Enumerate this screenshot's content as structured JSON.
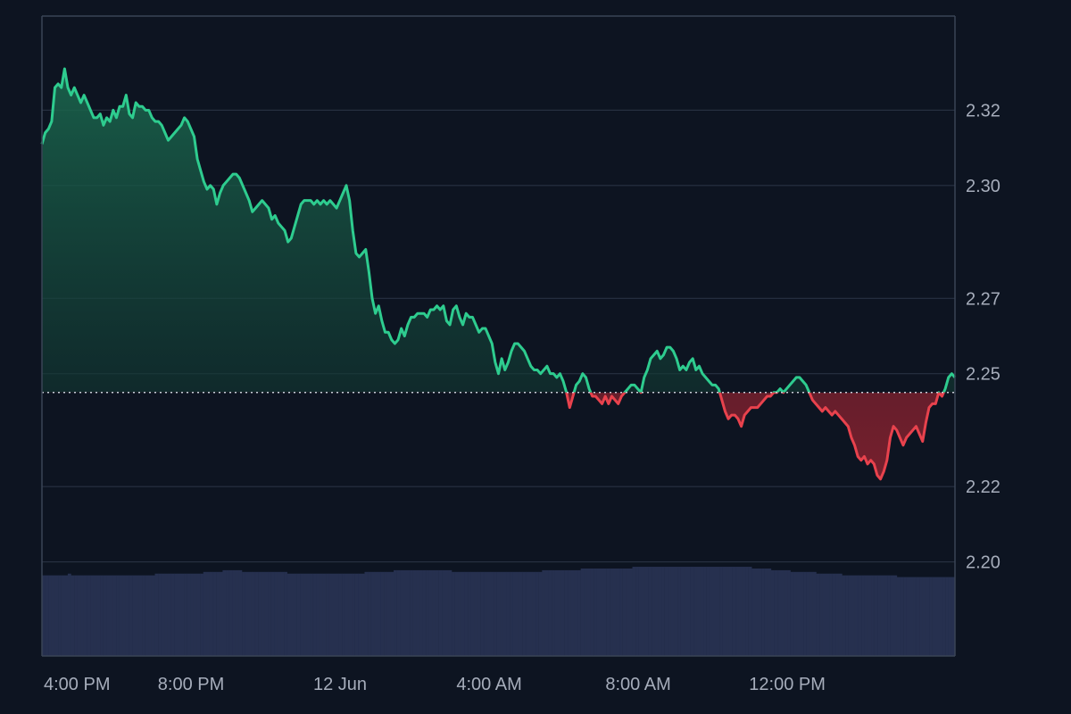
{
  "chart_data": {
    "type": "area",
    "title": "",
    "xlabel": "",
    "ylabel": "",
    "baseline": 2.245,
    "ylim": [
      2.175,
      2.345
    ],
    "y_ticks": [
      "2.32",
      "2.30",
      "2.27",
      "2.25",
      "2.22",
      "2.20"
    ],
    "y_tick_values": [
      2.32,
      2.3,
      2.27,
      2.25,
      2.22,
      2.2
    ],
    "x_ticks": [
      "4:00 PM",
      "8:00 PM",
      "12 Jun",
      "4:00 AM",
      "8:00 AM",
      "12:00 PM"
    ],
    "x_tick_hours": [
      0,
      4,
      8,
      12,
      16,
      20
    ],
    "x_range_hours": [
      0,
      24.5
    ],
    "grid": true,
    "colors": {
      "above": "#2ecc8f",
      "below": "#e8424d",
      "above_fill": "#1d6e52",
      "below_fill": "#7a1f2b",
      "volume": "#26304f",
      "grid": "#283142",
      "baseline_line": "#c9ced8",
      "background": "#0d1421"
    },
    "series": [
      {
        "values": [
          2.311,
          2.314,
          2.315,
          2.317,
          2.326,
          2.327,
          2.326,
          2.331,
          2.326,
          2.324,
          2.326,
          2.324,
          2.322,
          2.324,
          2.322,
          2.32,
          2.318,
          2.318,
          2.319,
          2.316,
          2.318,
          2.317,
          2.32,
          2.318,
          2.321,
          2.321,
          2.324,
          2.319,
          2.318,
          2.322,
          2.321,
          2.321,
          2.32,
          2.32,
          2.318,
          2.317,
          2.317,
          2.316,
          2.314,
          2.312,
          2.313,
          2.314,
          2.315,
          2.316,
          2.318,
          2.317,
          2.315,
          2.313,
          2.307,
          2.304,
          2.301,
          2.299,
          2.3,
          2.299,
          2.295,
          2.298,
          2.3,
          2.301,
          2.302,
          2.303,
          2.303,
          2.302,
          2.3,
          2.298,
          2.296,
          2.293,
          2.294,
          2.295,
          2.296,
          2.295,
          2.294,
          2.291,
          2.292,
          2.29,
          2.289,
          2.288,
          2.285,
          2.286,
          2.289,
          2.292,
          2.295,
          2.296,
          2.296,
          2.296,
          2.295,
          2.296,
          2.295,
          2.296,
          2.295,
          2.296,
          2.295,
          2.294,
          2.296,
          2.298,
          2.3,
          2.296,
          2.288,
          2.282,
          2.281,
          2.282,
          2.283,
          2.277,
          2.27,
          2.266,
          2.268,
          2.264,
          2.261,
          2.261,
          2.259,
          2.258,
          2.259,
          2.262,
          2.26,
          2.263,
          2.265,
          2.265,
          2.266,
          2.266,
          2.266,
          2.265,
          2.267,
          2.267,
          2.268,
          2.267,
          2.268,
          2.264,
          2.263,
          2.267,
          2.268,
          2.265,
          2.263,
          2.266,
          2.265,
          2.265,
          2.263,
          2.261,
          2.262,
          2.262,
          2.26,
          2.258,
          2.253,
          2.25,
          2.254,
          2.251,
          2.253,
          2.256,
          2.258,
          2.258,
          2.257,
          2.256,
          2.254,
          2.252,
          2.251,
          2.251,
          2.25,
          2.251,
          2.252,
          2.25,
          2.25,
          2.249,
          2.25,
          2.248,
          2.245,
          2.241,
          2.244,
          2.247,
          2.248,
          2.25,
          2.249,
          2.246,
          2.244,
          2.244,
          2.243,
          2.242,
          2.244,
          2.242,
          2.244,
          2.243,
          2.242,
          2.244,
          2.245,
          2.246,
          2.247,
          2.247,
          2.246,
          2.245,
          2.249,
          2.251,
          2.254,
          2.255,
          2.256,
          2.254,
          2.255,
          2.257,
          2.257,
          2.256,
          2.254,
          2.251,
          2.252,
          2.251,
          2.253,
          2.254,
          2.251,
          2.252,
          2.25,
          2.249,
          2.248,
          2.247,
          2.247,
          2.246,
          2.243,
          2.24,
          2.238,
          2.239,
          2.239,
          2.238,
          2.236,
          2.239,
          2.24,
          2.241,
          2.241,
          2.241,
          2.242,
          2.243,
          2.244,
          2.244,
          2.245,
          2.245,
          2.246,
          2.245,
          2.246,
          2.247,
          2.248,
          2.249,
          2.249,
          2.248,
          2.247,
          2.245,
          2.243,
          2.242,
          2.241,
          2.24,
          2.241,
          2.24,
          2.239,
          2.24,
          2.239,
          2.238,
          2.237,
          2.236,
          2.233,
          2.231,
          2.228,
          2.227,
          2.228,
          2.226,
          2.227,
          2.226,
          2.223,
          2.222,
          2.224,
          2.227,
          2.233,
          2.236,
          2.235,
          2.233,
          2.231,
          2.233,
          2.234,
          2.235,
          2.236,
          2.234,
          2.232,
          2.237,
          2.241,
          2.242,
          2.242,
          2.245,
          2.244,
          2.246,
          2.249,
          2.25,
          2.249
        ]
      }
    ],
    "volume": [
      0.47,
      0.47,
      0.47,
      0.47,
      0.47,
      0.47,
      0.47,
      0.47,
      0.48,
      0.47,
      0.47,
      0.47,
      0.47,
      0.47,
      0.47,
      0.47,
      0.47,
      0.47,
      0.47,
      0.47,
      0.47,
      0.47,
      0.47,
      0.47,
      0.47,
      0.47,
      0.47,
      0.47,
      0.47,
      0.47,
      0.47,
      0.47,
      0.47,
      0.47,
      0.47,
      0.48,
      0.48,
      0.48,
      0.48,
      0.48,
      0.48,
      0.48,
      0.48,
      0.48,
      0.48,
      0.48,
      0.48,
      0.48,
      0.48,
      0.48,
      0.49,
      0.49,
      0.49,
      0.49,
      0.49,
      0.49,
      0.5,
      0.5,
      0.5,
      0.5,
      0.5,
      0.5,
      0.49,
      0.49,
      0.49,
      0.49,
      0.49,
      0.49,
      0.49,
      0.49,
      0.49,
      0.49,
      0.49,
      0.49,
      0.49,
      0.49,
      0.48,
      0.48,
      0.48,
      0.48,
      0.48,
      0.48,
      0.48,
      0.48,
      0.48,
      0.48,
      0.48,
      0.48,
      0.48,
      0.48,
      0.48,
      0.48,
      0.48,
      0.48,
      0.48,
      0.48,
      0.48,
      0.48,
      0.48,
      0.48,
      0.49,
      0.49,
      0.49,
      0.49,
      0.49,
      0.49,
      0.49,
      0.49,
      0.49,
      0.5,
      0.5,
      0.5,
      0.5,
      0.5,
      0.5,
      0.5,
      0.5,
      0.5,
      0.5,
      0.5,
      0.5,
      0.5,
      0.5,
      0.5,
      0.5,
      0.5,
      0.5,
      0.49,
      0.49,
      0.49,
      0.49,
      0.49,
      0.49,
      0.49,
      0.49,
      0.49,
      0.49,
      0.49,
      0.49,
      0.49,
      0.49,
      0.49,
      0.49,
      0.49,
      0.49,
      0.49,
      0.49,
      0.49,
      0.49,
      0.49,
      0.49,
      0.49,
      0.49,
      0.49,
      0.49,
      0.5,
      0.5,
      0.5,
      0.5,
      0.5,
      0.5,
      0.5,
      0.5,
      0.5,
      0.5,
      0.5,
      0.5,
      0.51,
      0.51,
      0.51,
      0.51,
      0.51,
      0.51,
      0.51,
      0.51,
      0.51,
      0.51,
      0.51,
      0.51,
      0.51,
      0.51,
      0.51,
      0.51,
      0.52,
      0.52,
      0.52,
      0.52,
      0.52,
      0.52,
      0.52,
      0.52,
      0.52,
      0.52,
      0.52,
      0.52,
      0.52,
      0.52,
      0.52,
      0.52,
      0.52,
      0.52,
      0.52,
      0.52,
      0.52,
      0.52,
      0.52,
      0.52,
      0.52,
      0.52,
      0.52,
      0.52,
      0.52,
      0.52,
      0.52,
      0.52,
      0.52,
      0.52,
      0.52,
      0.52,
      0.52,
      0.51,
      0.51,
      0.51,
      0.51,
      0.51,
      0.51,
      0.5,
      0.5,
      0.5,
      0.5,
      0.5,
      0.5,
      0.49,
      0.49,
      0.49,
      0.49,
      0.49,
      0.49,
      0.49,
      0.49,
      0.48,
      0.48,
      0.48,
      0.48,
      0.48,
      0.48,
      0.48,
      0.48,
      0.47,
      0.47,
      0.47,
      0.47,
      0.47,
      0.47,
      0.47,
      0.47,
      0.47,
      0.47,
      0.47,
      0.47,
      0.47,
      0.47,
      0.47,
      0.47,
      0.47,
      0.46,
      0.46,
      0.46,
      0.46,
      0.46,
      0.46,
      0.46,
      0.46,
      0.46,
      0.46,
      0.46,
      0.46,
      0.46,
      0.46,
      0.46,
      0.46,
      0.46,
      0.46
    ]
  }
}
